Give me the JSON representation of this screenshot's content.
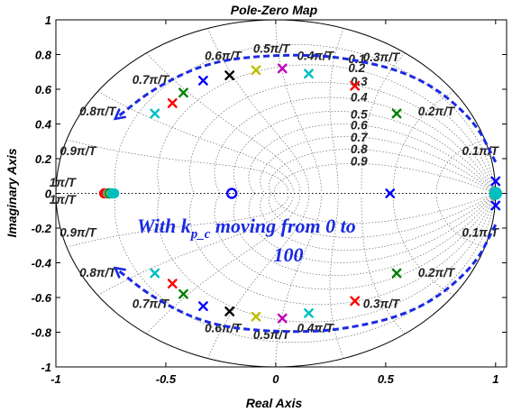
{
  "chart_data": {
    "type": "scatter",
    "title": "Pole-Zero Map",
    "xlabel": "Real Axis",
    "ylabel": "Imaginary Axis",
    "xlim": [
      -1,
      1.05
    ],
    "ylim": [
      -1,
      1
    ],
    "xticks": [
      -1,
      -0.5,
      0,
      0.5,
      1
    ],
    "xtick_labels": [
      "-1",
      "-0.5",
      "0",
      "0.5",
      "1"
    ],
    "yticks": [
      1,
      0.8,
      0.6,
      0.4,
      0.2,
      0,
      -0.2,
      -0.4,
      -0.6,
      -0.8,
      -1
    ],
    "ytick_labels": [
      "1",
      "0.8",
      "0.6",
      "0.4",
      "0.2",
      "0",
      "-0.2",
      "-0.4",
      "-0.6",
      "-0.8",
      "-1"
    ],
    "grid": true,
    "legend": "none",
    "grid_lines": "discrete-time damping ratio and natural frequency grid (zgrid)",
    "natural_frequency_labels": [
      {
        "text": "0.1π/T",
        "x": 0.93,
        "y": 0.22
      },
      {
        "text": "0.2π/T",
        "x": 0.73,
        "y": 0.45
      },
      {
        "text": "0.3π/T",
        "x": 0.48,
        "y": 0.76
      },
      {
        "text": "0.4π/T",
        "x": 0.18,
        "y": 0.77
      },
      {
        "text": "0.5π/T",
        "x": -0.02,
        "y": 0.81
      },
      {
        "text": "0.6π/T",
        "x": -0.24,
        "y": 0.77
      },
      {
        "text": "0.7π/T",
        "x": -0.57,
        "y": 0.63
      },
      {
        "text": "0.8π/T",
        "x": -0.81,
        "y": 0.45
      },
      {
        "text": "0.9π/T",
        "x": -0.9,
        "y": 0.22
      },
      {
        "text": "1π/T",
        "x": -0.97,
        "y": 0.04
      },
      {
        "text": "1π/T",
        "x": -0.97,
        "y": -0.06
      },
      {
        "text": "0.9π/T",
        "x": -0.9,
        "y": -0.25
      },
      {
        "text": "0.8π/T",
        "x": -0.81,
        "y": -0.48
      },
      {
        "text": "0.7π/T",
        "x": -0.57,
        "y": -0.66
      },
      {
        "text": "0.6π/T",
        "x": -0.24,
        "y": -0.8
      },
      {
        "text": "0.5π/T",
        "x": -0.02,
        "y": -0.84
      },
      {
        "text": "0.4π/T",
        "x": 0.18,
        "y": -0.8
      },
      {
        "text": "0.3π/T",
        "x": 0.48,
        "y": -0.66
      },
      {
        "text": "0.2π/T",
        "x": 0.73,
        "y": -0.48
      },
      {
        "text": "0.1π/T",
        "x": 0.93,
        "y": -0.25
      }
    ],
    "damping_labels": [
      {
        "text": "0.1",
        "x": 0.33,
        "y": 0.75
      },
      {
        "text": "0.2",
        "x": 0.33,
        "y": 0.7
      },
      {
        "text": "0.3",
        "x": 0.34,
        "y": 0.62
      },
      {
        "text": "0.4",
        "x": 0.34,
        "y": 0.53
      },
      {
        "text": "0.5",
        "x": 0.34,
        "y": 0.43
      },
      {
        "text": "0.6",
        "x": 0.34,
        "y": 0.37
      },
      {
        "text": "0.7",
        "x": 0.34,
        "y": 0.3
      },
      {
        "text": "0.8",
        "x": 0.34,
        "y": 0.23
      },
      {
        "text": "0.9",
        "x": 0.34,
        "y": 0.16
      }
    ],
    "series": [
      {
        "color": "#00bfbf",
        "poles": [
          [
            -0.55,
            0.46
          ],
          [
            0.15,
            0.69
          ],
          [
            -0.55,
            -0.46
          ],
          [
            0.15,
            -0.69
          ]
        ]
      },
      {
        "color": "#ff0000",
        "poles": [
          [
            -0.47,
            0.52
          ],
          [
            0.36,
            0.62
          ],
          [
            -0.47,
            -0.52
          ],
          [
            0.36,
            -0.62
          ]
        ]
      },
      {
        "color": "#008000",
        "poles": [
          [
            -0.42,
            0.58
          ],
          [
            0.55,
            0.46
          ],
          [
            -0.42,
            -0.58
          ],
          [
            0.55,
            -0.46
          ]
        ]
      },
      {
        "color": "#0000ff",
        "poles": [
          [
            -0.33,
            0.65
          ],
          [
            0.52,
            0.0
          ],
          [
            1.0,
            0.07
          ],
          [
            -0.33,
            -0.65
          ],
          [
            1.0,
            -0.07
          ]
        ]
      },
      {
        "color": "#000000",
        "poles": [
          [
            -0.21,
            0.68
          ],
          [
            -0.21,
            -0.68
          ]
        ]
      },
      {
        "color": "#bfbf00",
        "poles": [
          [
            -0.09,
            0.71
          ],
          [
            -0.09,
            -0.71
          ]
        ]
      },
      {
        "color": "#bf00bf",
        "poles": [
          [
            0.03,
            0.72
          ],
          [
            0.03,
            -0.72
          ]
        ]
      }
    ],
    "zeros": [
      {
        "color": "#0000ff",
        "x": -0.2,
        "y": 0.0,
        "fill": "none"
      },
      {
        "color": "#00bfbf",
        "x": 1.0,
        "y": 0.0,
        "fill": "#00bfbf"
      },
      {
        "color": "#ff0000",
        "x": -0.78,
        "y": 0.0,
        "fill": "#ff0000"
      },
      {
        "color": "#808080",
        "x": -0.765,
        "y": 0.0,
        "fill": "#a0a0a0"
      },
      {
        "color": "#008000",
        "x": -0.755,
        "y": 0.0,
        "fill": "#bfbf00"
      },
      {
        "color": "#00bfbf",
        "x": -0.745,
        "y": 0.0,
        "fill": "#00bfbf"
      },
      {
        "color": "#00bfbf",
        "x": -0.735,
        "y": 0.0,
        "fill": "#00bfbf"
      }
    ],
    "trajectory_arrows": {
      "color": "#1a2ae0",
      "upper": [
        [
          1.0,
          0.18
        ],
        [
          0.9,
          0.43
        ],
        [
          0.65,
          0.68
        ],
        [
          0.3,
          0.79
        ],
        [
          0.0,
          0.8
        ],
        [
          -0.3,
          0.76
        ],
        [
          -0.55,
          0.61
        ],
        [
          -0.73,
          0.43
        ]
      ],
      "lower": [
        [
          1.0,
          -0.18
        ],
        [
          0.9,
          -0.43
        ],
        [
          0.65,
          -0.68
        ],
        [
          0.3,
          -0.79
        ],
        [
          0.0,
          -0.8
        ],
        [
          -0.3,
          -0.76
        ],
        [
          -0.55,
          -0.61
        ],
        [
          -0.73,
          -0.43
        ]
      ]
    },
    "annotation": {
      "line1": "With k",
      "subscript": "p_c",
      "line1_rest": " moving from 0 to",
      "line2": "100",
      "x": 0.08,
      "y": -0.19
    }
  }
}
